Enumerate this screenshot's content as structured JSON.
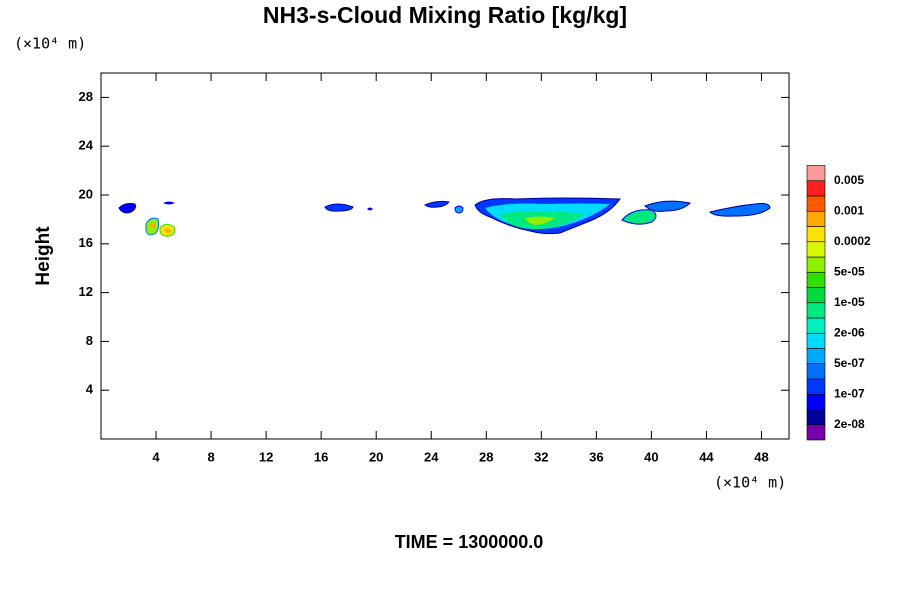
{
  "chart_data": {
    "type": "contour",
    "title": "NH3-s-Cloud Mixing Ratio [kg/kg]",
    "y_unit": "(×10⁴ m)",
    "x_unit": "(×10⁴ m)",
    "y_label": "Height",
    "time_label": "TIME = 1300000.0",
    "xlim": [
      0,
      50
    ],
    "ylim": [
      0,
      30
    ],
    "xticks": [
      4,
      8,
      12,
      16,
      20,
      24,
      28,
      32,
      36,
      40,
      44,
      48
    ],
    "yticks": [
      4,
      8,
      12,
      16,
      20,
      24,
      28
    ],
    "colorbar": {
      "colors": [
        "#7a00aa",
        "#00009a",
        "#0000ff",
        "#0038ff",
        "#0070ff",
        "#00a8ff",
        "#00dcff",
        "#00f0c0",
        "#00e880",
        "#00dc40",
        "#30e000",
        "#90f000",
        "#d8f800",
        "#ffe000",
        "#ffa800",
        "#ff5a00",
        "#ff2020",
        "#ff9a9a"
      ],
      "ticks": [
        {
          "value": 2e-08,
          "label": "2e-08"
        },
        {
          "value": 1e-07,
          "label": "1e-07"
        },
        {
          "value": 5e-07,
          "label": "5e-07"
        },
        {
          "value": 2e-06,
          "label": "2e-06"
        },
        {
          "value": 1e-05,
          "label": "1e-05"
        },
        {
          "value": 5e-05,
          "label": "5e-05"
        },
        0.0002,
        0.001,
        0.005
      ]
    }
  }
}
